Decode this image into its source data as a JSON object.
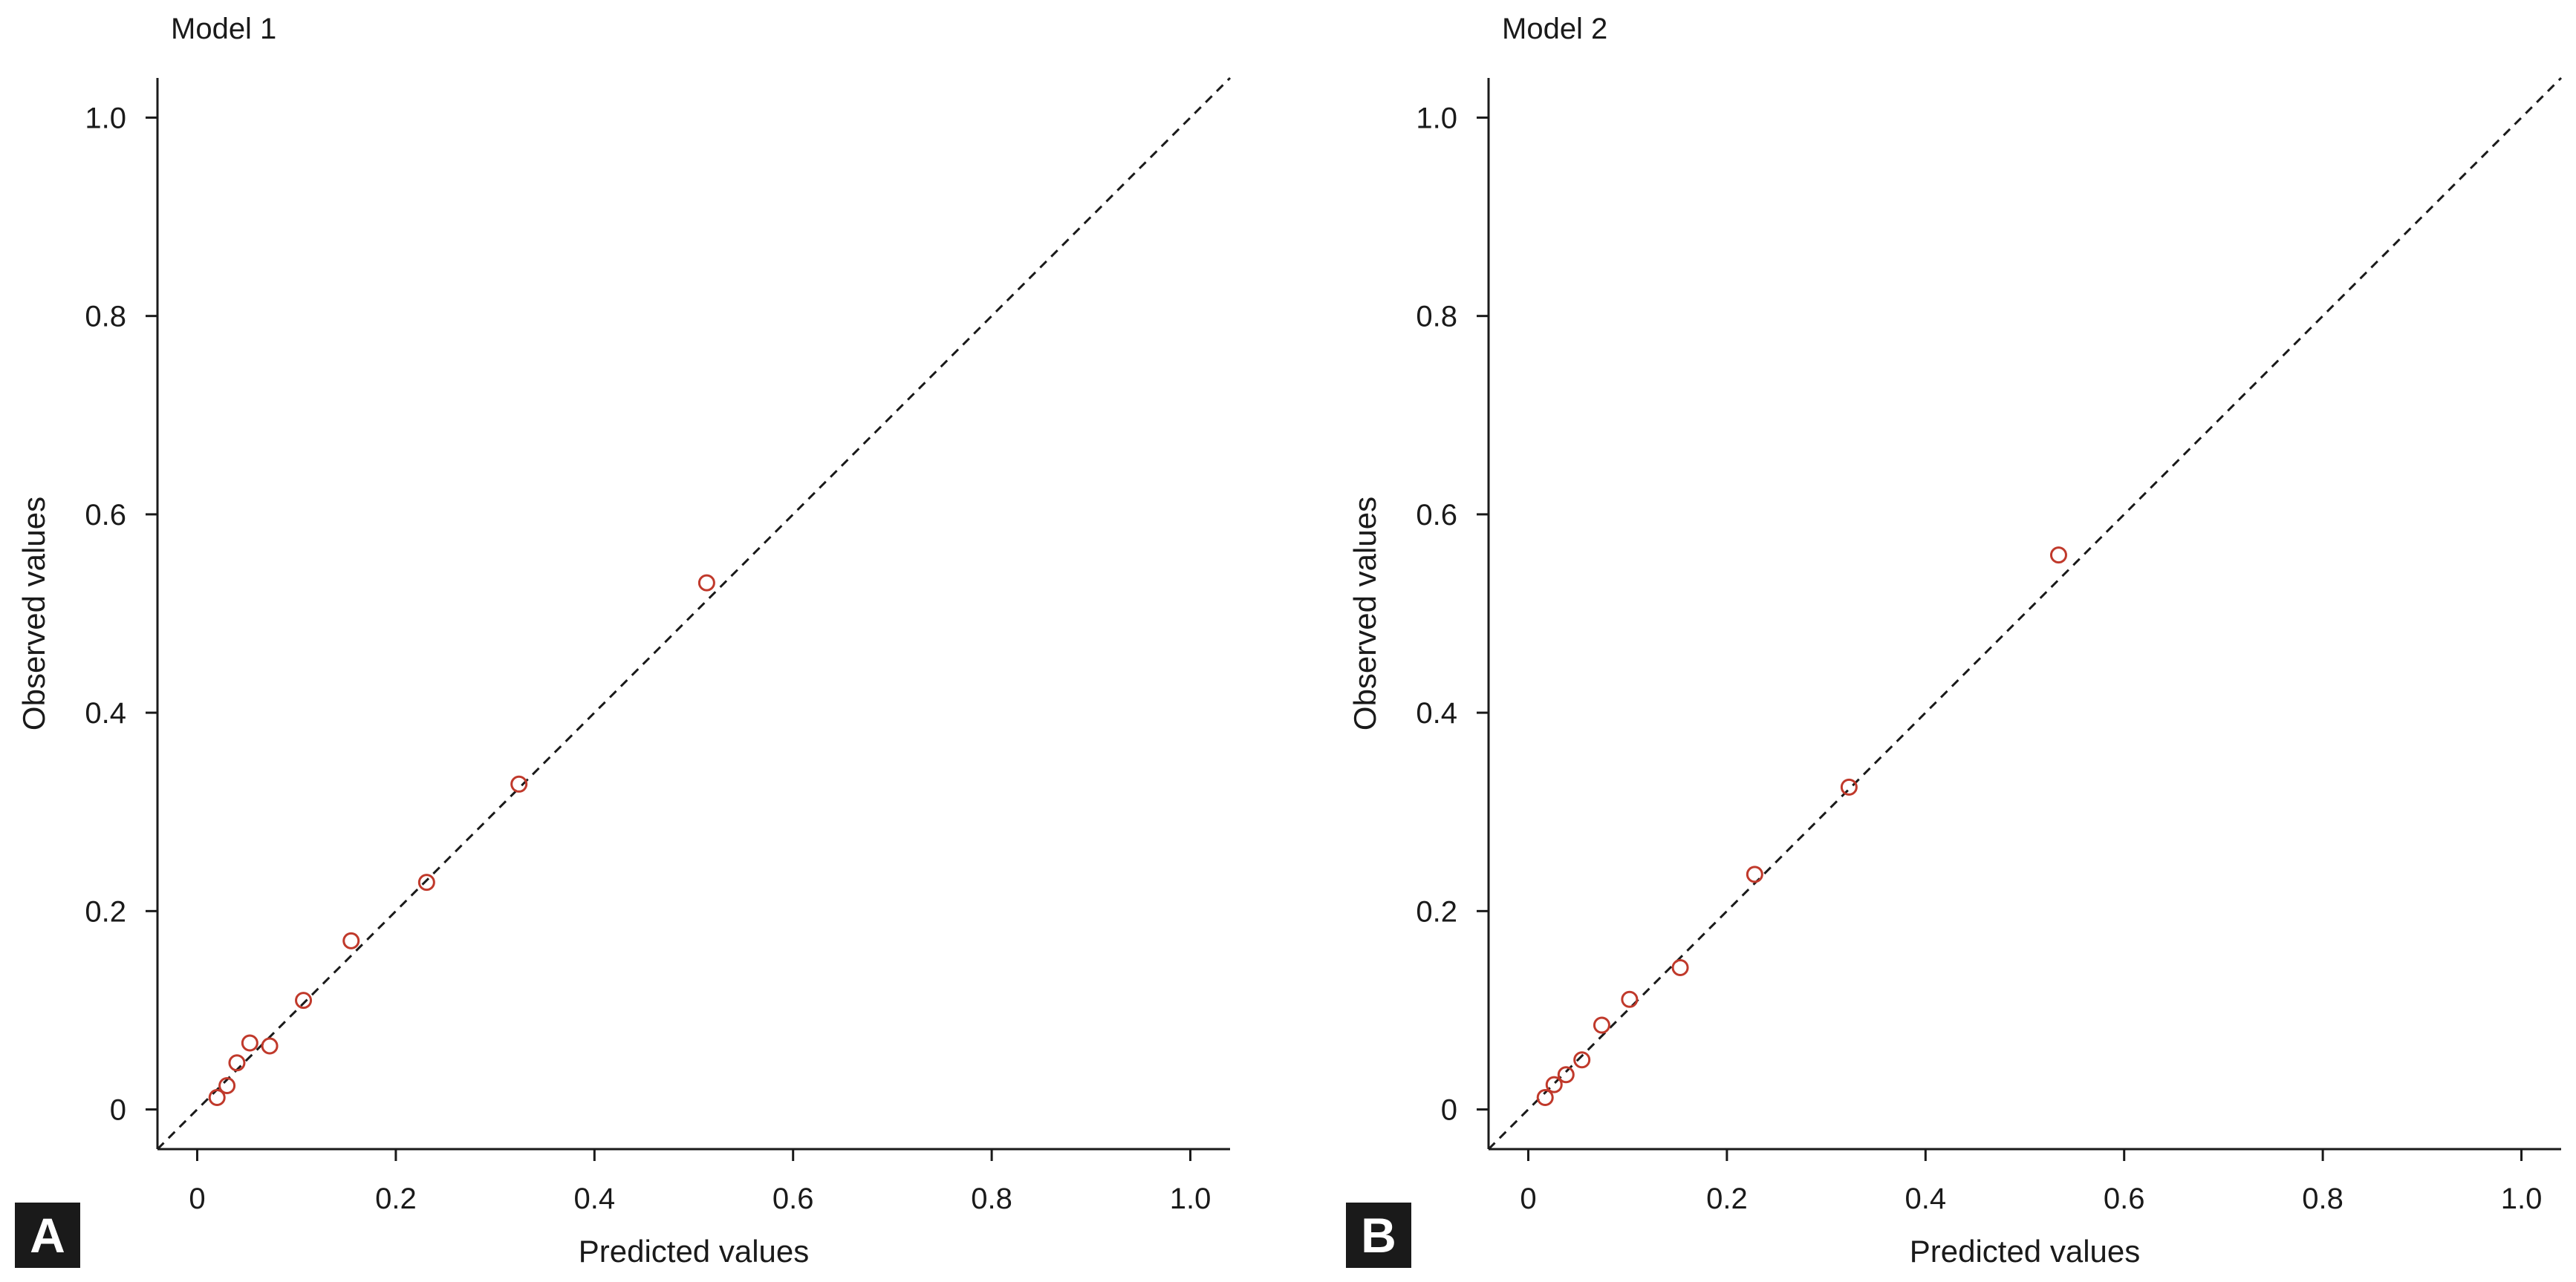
{
  "colors": {
    "marker": "#c0392b",
    "axis": "#1a1a1a",
    "reference_line": "#1a1a1a",
    "panel_badge": "#1a1a1a"
  },
  "chart_data": [
    {
      "type": "scatter",
      "panel": "A",
      "title": "Model 1",
      "xlabel": "Predicted values",
      "ylabel": "Observed values",
      "xlim": [
        -0.04,
        1.04
      ],
      "ylim": [
        -0.04,
        1.04
      ],
      "xticks": [
        "0",
        "0.2",
        "0.4",
        "0.6",
        "0.8",
        "1.0"
      ],
      "yticks": [
        "0",
        "0.2",
        "0.4",
        "0.6",
        "0.8",
        "1.0"
      ],
      "reference_line": "y = x, dashed",
      "grid": false,
      "points": [
        {
          "x": 0.02,
          "y": 0.012
        },
        {
          "x": 0.03,
          "y": 0.024
        },
        {
          "x": 0.04,
          "y": 0.047
        },
        {
          "x": 0.053,
          "y": 0.067
        },
        {
          "x": 0.073,
          "y": 0.064
        },
        {
          "x": 0.107,
          "y": 0.11
        },
        {
          "x": 0.155,
          "y": 0.17
        },
        {
          "x": 0.231,
          "y": 0.229
        },
        {
          "x": 0.324,
          "y": 0.328
        },
        {
          "x": 0.513,
          "y": 0.531
        }
      ]
    },
    {
      "type": "scatter",
      "panel": "B",
      "title": "Model 2",
      "xlabel": "Predicted values",
      "ylabel": "Observed values",
      "xlim": [
        -0.04,
        1.04
      ],
      "ylim": [
        -0.04,
        1.04
      ],
      "xticks": [
        "0",
        "0.2",
        "0.4",
        "0.6",
        "0.8",
        "1.0"
      ],
      "yticks": [
        "0",
        "0.2",
        "0.4",
        "0.6",
        "0.8",
        "1.0"
      ],
      "reference_line": "y = x, dashed",
      "grid": false,
      "points": [
        {
          "x": 0.017,
          "y": 0.012
        },
        {
          "x": 0.026,
          "y": 0.025
        },
        {
          "x": 0.038,
          "y": 0.035
        },
        {
          "x": 0.054,
          "y": 0.05
        },
        {
          "x": 0.074,
          "y": 0.085
        },
        {
          "x": 0.102,
          "y": 0.111
        },
        {
          "x": 0.153,
          "y": 0.143
        },
        {
          "x": 0.228,
          "y": 0.237
        },
        {
          "x": 0.323,
          "y": 0.325
        },
        {
          "x": 0.534,
          "y": 0.559
        }
      ]
    }
  ]
}
